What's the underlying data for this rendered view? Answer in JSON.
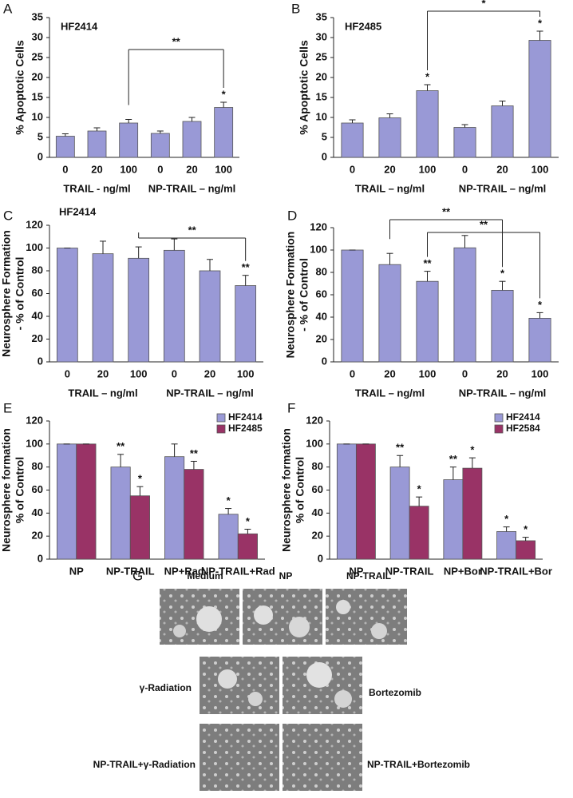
{
  "chart_data": [
    {
      "type": "bar",
      "panel": "A",
      "label": "HF2414",
      "ylabel": [
        "% Apoptotic Cells"
      ],
      "categories": [
        "0",
        "20",
        "100",
        "0",
        "20",
        "100"
      ],
      "groups": [
        "TRAIL - ng/ml",
        "NP-TRAIL – ng/ml"
      ],
      "values": [
        5.3,
        6.6,
        8.6,
        6.0,
        9.0,
        12.5
      ],
      "errors": [
        0.6,
        0.8,
        0.9,
        0.6,
        1.0,
        1.3
      ],
      "annotations": [
        null,
        null,
        null,
        null,
        null,
        "*"
      ],
      "color": "#9999d6",
      "brackets": [
        {
          "label": "**",
          "between": [
            2,
            5
          ]
        }
      ],
      "ylim": [
        0,
        35
      ],
      "yticks": [
        0,
        5,
        10,
        15,
        20,
        25,
        30,
        35
      ]
    },
    {
      "type": "bar",
      "panel": "B",
      "label": "HF2485",
      "ylabel": [
        "% Apoptotic Cells"
      ],
      "categories": [
        "0",
        "20",
        "100",
        "0",
        "20",
        "100"
      ],
      "groups": [
        "TRAIL – ng/ml",
        "NP-TRAIL – ng/ml"
      ],
      "values": [
        8.6,
        9.9,
        16.7,
        7.5,
        12.9,
        29.3
      ],
      "errors": [
        0.8,
        1.0,
        1.5,
        0.7,
        1.2,
        2.3
      ],
      "annotations": [
        null,
        null,
        "*",
        null,
        null,
        "*"
      ],
      "color": "#9999d6",
      "brackets": [
        {
          "label": "*",
          "between": [
            2,
            5
          ]
        }
      ],
      "ylim": [
        0,
        35
      ],
      "yticks": [
        0,
        5,
        10,
        15,
        20,
        25,
        30,
        35
      ]
    },
    {
      "type": "bar",
      "panel": "C",
      "label": "HF2414",
      "ylabel": [
        "Neurosphere Formation",
        "- % of Control"
      ],
      "categories": [
        "0",
        "20",
        "100",
        "0",
        "20",
        "100"
      ],
      "groups": [
        "TRAIL – ng/ml",
        "NP-TRAIL – ng/ml"
      ],
      "values": [
        100,
        95,
        91,
        98,
        80,
        67
      ],
      "errors": [
        0,
        11,
        10,
        10,
        10,
        9
      ],
      "annotations": [
        null,
        null,
        null,
        null,
        null,
        "**"
      ],
      "color": "#9999d6",
      "brackets": [
        {
          "label": "**",
          "between": [
            2,
            5
          ]
        }
      ],
      "ylim": [
        0,
        120
      ],
      "yticks": [
        0,
        20,
        40,
        60,
        80,
        100,
        120
      ]
    },
    {
      "type": "bar",
      "panel": "D",
      "ylabel": [
        "Neurosphere Formation",
        "- % of Control"
      ],
      "categories": [
        "0",
        "20",
        "100",
        "0",
        "20",
        "100"
      ],
      "groups": [
        "TRAIL – ng/ml",
        "NP-TRAIL – ng/ml"
      ],
      "values": [
        100,
        87,
        72,
        102,
        64,
        39
      ],
      "errors": [
        0,
        10,
        9,
        11,
        8,
        5
      ],
      "annotations": [
        null,
        null,
        "**",
        null,
        "*",
        "*"
      ],
      "color": "#9999d6",
      "brackets": [
        {
          "label": "**",
          "between": [
            1,
            4
          ]
        },
        {
          "label": "**",
          "between": [
            2,
            5
          ]
        }
      ],
      "ylim": [
        0,
        120
      ],
      "yticks": [
        0,
        20,
        40,
        60,
        80,
        100,
        120
      ]
    },
    {
      "type": "grouped-bar",
      "panel": "E",
      "ylabel": [
        "Neurosphere formation",
        "% of Control"
      ],
      "categories": [
        "NP",
        "NP-TRAIL",
        "NP+Rad",
        "NP-TRAIL+Rad"
      ],
      "series": [
        {
          "name": "HF2414",
          "color": "#9999d6",
          "values": [
            100,
            80,
            89,
            39
          ],
          "errors": [
            0,
            11,
            11,
            5
          ],
          "annotations": [
            null,
            "**",
            null,
            "*"
          ]
        },
        {
          "name": "HF2485",
          "color": "#993366",
          "values": [
            100,
            55,
            78,
            22
          ],
          "errors": [
            0,
            8,
            7,
            4
          ],
          "annotations": [
            null,
            "*",
            "**",
            "*"
          ]
        }
      ],
      "legend": "upper right",
      "ylim": [
        0,
        120
      ],
      "yticks": [
        0,
        20,
        40,
        60,
        80,
        100,
        120
      ]
    },
    {
      "type": "grouped-bar",
      "panel": "F",
      "ylabel": [
        "Neurosphere formation",
        "% of Control"
      ],
      "categories": [
        "NP",
        "NP-TRAIL",
        "NP+Bor",
        "NP-TRAIL+Bor"
      ],
      "series": [
        {
          "name": "HF2414",
          "color": "#9999d6",
          "values": [
            100,
            80,
            69,
            24
          ],
          "errors": [
            0,
            10,
            11,
            4
          ],
          "annotations": [
            null,
            "**",
            "**",
            "*"
          ]
        },
        {
          "name": "HF2584",
          "color": "#993366",
          "values": [
            100,
            46,
            79,
            16
          ],
          "errors": [
            0,
            8,
            9,
            3
          ],
          "annotations": [
            null,
            "*",
            "*",
            "*"
          ]
        }
      ],
      "legend": "upper right",
      "ylim": [
        0,
        120
      ],
      "yticks": [
        0,
        20,
        40,
        60,
        80,
        100,
        120
      ]
    }
  ],
  "micrographs": {
    "panel": "G",
    "labels": [
      "Medium",
      "NP",
      "NP-TRAIL",
      "γ-Radiation",
      "Bortezomib",
      "NP-TRAIL+γ-Radiation",
      "NP-TRAIL+Bortezomib"
    ]
  }
}
